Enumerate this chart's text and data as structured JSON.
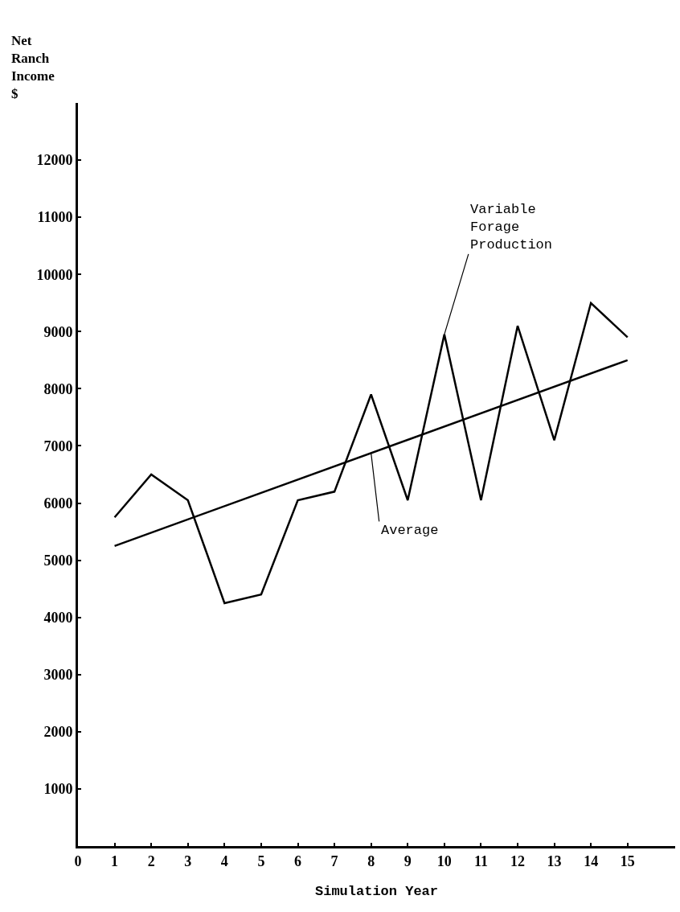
{
  "chart_data": {
    "type": "line",
    "xlabel": "Simulation Year",
    "ylabel": "Net Ranch Income $",
    "series": [
      {
        "color": "#000000",
        "x": [
          1,
          2,
          3,
          4,
          5,
          6,
          7,
          8,
          9,
          10,
          11,
          12,
          13,
          14,
          15
        ],
        "values": [
          5750,
          6500,
          6050,
          4250,
          4400,
          6050,
          6200,
          7900,
          6050,
          8950,
          6050,
          9100,
          7100,
          9500,
          8900
        ]
      },
      {
        "color": "#000000",
        "x": [
          1,
          15
        ],
        "values": [
          5250,
          8500
        ]
      }
    ],
    "annotations": [
      {
        "text": "Variable Forage Production",
        "x": 10,
        "y": 8950
      },
      {
        "text": "Average",
        "x": 8,
        "y": 6875
      }
    ],
    "xlim": [
      0,
      16.3
    ],
    "xticks": [
      0,
      1,
      2,
      3,
      4,
      5,
      6,
      7,
      8,
      9,
      10,
      11,
      12,
      13,
      14,
      15
    ],
    "ylim": [
      0,
      13000
    ],
    "yticks": [
      1000,
      2000,
      3000,
      4000,
      5000,
      6000,
      7000,
      8000,
      9000,
      10000,
      11000,
      12000
    ],
    "grid": false,
    "marker": "none",
    "line_style": "solid"
  }
}
